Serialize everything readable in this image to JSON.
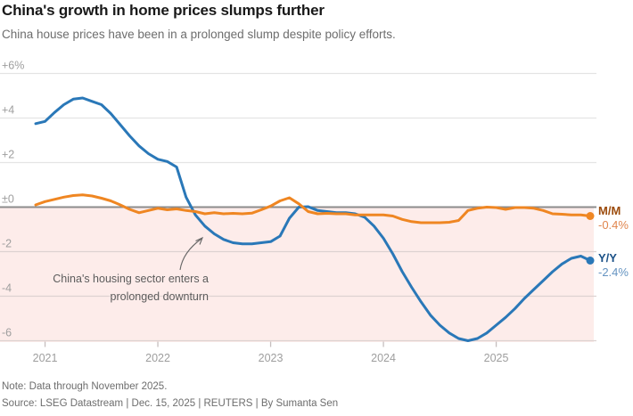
{
  "header": {
    "title": "China's growth in home prices slumps further",
    "subtitle": "China house prices have been in a prolonged slump despite policy efforts."
  },
  "annotation": {
    "line1": "China's housing sector enters a",
    "line2": "prolonged downturn"
  },
  "end_labels": {
    "mm": {
      "name": "M/M",
      "value": "-0.4%"
    },
    "yy": {
      "name": "Y/Y",
      "value": "-2.4%"
    }
  },
  "footer": {
    "note": "Note: Data through November 2025.",
    "source": "Source: LSEG Datastream | Dec. 15, 2025 | REUTERS | By Sumanta Sen"
  },
  "colors": {
    "yy_line": "#2a78b8",
    "mm_line": "#ef8622",
    "negative_fill": "#fdecea",
    "grid_positive": "#e4e4e4",
    "grid_negative": "#ddd2d1",
    "zero_line": "#8c8c8c",
    "axis_text": "#9e9e9e",
    "tick_mark": "#c6bebe",
    "arrow": "#666666"
  },
  "chart_data": {
    "type": "line",
    "title": "China's growth in home prices slumps further",
    "x_unit": "month",
    "x_range": [
      "Dec 2020",
      "Nov 2025"
    ],
    "x_tick_labels": [
      "2021",
      "2022",
      "2023",
      "2024",
      "2025"
    ],
    "x_tick_month_indices": [
      1,
      13,
      25,
      37,
      49
    ],
    "y_tick_labels": [
      "+6%",
      "+4",
      "+2",
      "±0",
      "-2",
      "-4",
      "-6"
    ],
    "y_tick_values": [
      6,
      4,
      2,
      0,
      -2,
      -4,
      -6
    ],
    "ylim": [
      -6.3,
      6.3
    ],
    "grid": "horizontal",
    "negative_region_shaded": true,
    "legend_position": "right-of-line-ends",
    "series": [
      {
        "name": "Y/Y",
        "color": "#2a78b8",
        "end_value_label": "-2.4%",
        "values": [
          3.75,
          3.85,
          4.25,
          4.6,
          4.85,
          4.9,
          4.75,
          4.6,
          4.2,
          3.7,
          3.2,
          2.75,
          2.4,
          2.15,
          2.05,
          1.8,
          0.45,
          -0.35,
          -0.85,
          -1.2,
          -1.45,
          -1.6,
          -1.65,
          -1.65,
          -1.6,
          -1.55,
          -1.3,
          -0.5,
          0.0,
          0.02,
          -0.15,
          -0.2,
          -0.25,
          -0.25,
          -0.3,
          -0.45,
          -0.85,
          -1.4,
          -2.1,
          -2.9,
          -3.6,
          -4.25,
          -4.85,
          -5.3,
          -5.65,
          -5.9,
          -6.0,
          -5.9,
          -5.65,
          -5.3,
          -4.95,
          -4.55,
          -4.1,
          -3.7,
          -3.3,
          -2.9,
          -2.55,
          -2.3,
          -2.2,
          -2.4
        ]
      },
      {
        "name": "M/M",
        "color": "#ef8622",
        "end_value_label": "-0.4%",
        "values": [
          0.1,
          0.25,
          0.35,
          0.45,
          0.52,
          0.55,
          0.5,
          0.4,
          0.28,
          0.1,
          -0.1,
          -0.25,
          -0.15,
          -0.05,
          -0.12,
          -0.08,
          -0.15,
          -0.2,
          -0.3,
          -0.25,
          -0.3,
          -0.28,
          -0.3,
          -0.27,
          -0.12,
          0.05,
          0.28,
          0.42,
          0.15,
          -0.2,
          -0.3,
          -0.28,
          -0.3,
          -0.3,
          -0.35,
          -0.35,
          -0.35,
          -0.35,
          -0.4,
          -0.55,
          -0.65,
          -0.7,
          -0.7,
          -0.7,
          -0.68,
          -0.6,
          -0.15,
          -0.05,
          0.0,
          -0.02,
          -0.1,
          -0.02,
          -0.02,
          -0.05,
          -0.15,
          -0.3,
          -0.32,
          -0.35,
          -0.35,
          -0.4
        ]
      }
    ]
  }
}
